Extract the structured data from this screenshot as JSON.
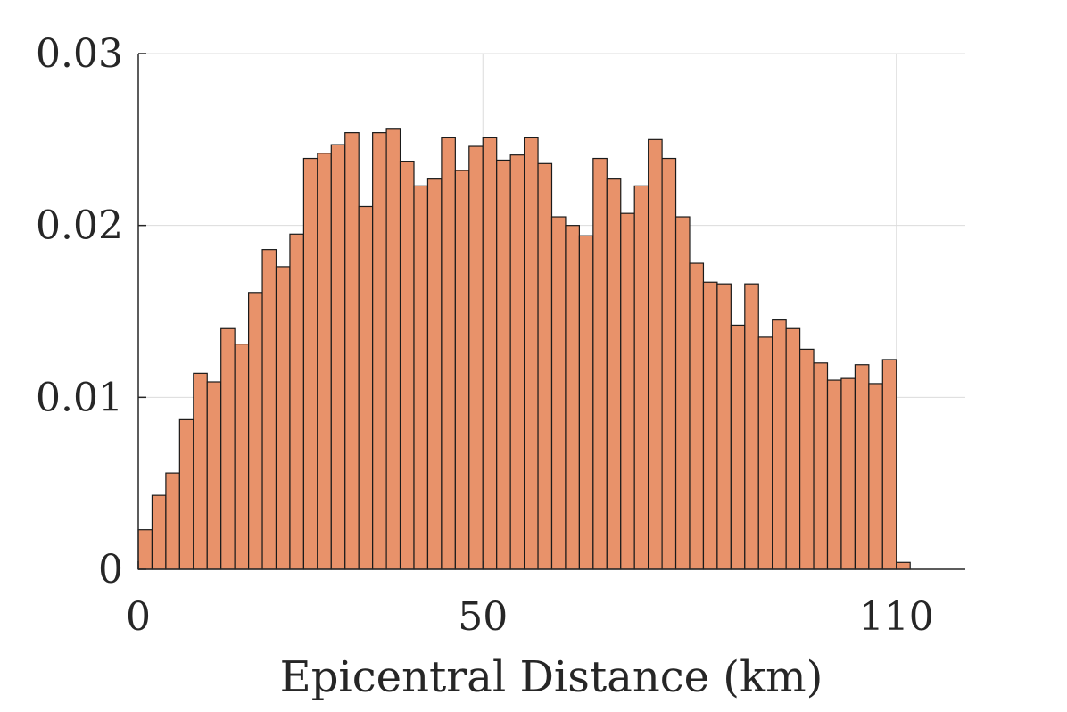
{
  "chart_data": {
    "type": "bar",
    "xlabel": "Epicentral Distance (km)",
    "ylabel": "",
    "title": "",
    "bin_width": 2,
    "xlim": [
      0,
      120
    ],
    "ylim": [
      0,
      0.03
    ],
    "xticks": [
      0,
      50,
      110
    ],
    "xtick_labels": [
      "0",
      "50",
      "110"
    ],
    "yticks": [
      0,
      0.01,
      0.02,
      0.03
    ],
    "ytick_labels": [
      "0",
      "0.01",
      "0.02",
      "0.03"
    ],
    "grid": true,
    "bar_color": "#E8926A",
    "bar_edge_color": "#1a1a1a",
    "bins_start": [
      0,
      2,
      4,
      6,
      8,
      10,
      12,
      14,
      16,
      18,
      20,
      22,
      24,
      26,
      28,
      30,
      32,
      34,
      36,
      38,
      40,
      42,
      44,
      46,
      48,
      50,
      52,
      54,
      56,
      58,
      60,
      62,
      64,
      66,
      68,
      70,
      72,
      74,
      76,
      78,
      80,
      82,
      84,
      86,
      88,
      90,
      92,
      94,
      96,
      98,
      100,
      102,
      104,
      106,
      108,
      110,
      112
    ],
    "values": [
      0.0023,
      0.0043,
      0.0056,
      0.0087,
      0.0114,
      0.0109,
      0.014,
      0.0131,
      0.0161,
      0.0186,
      0.0176,
      0.0195,
      0.0239,
      0.0242,
      0.0247,
      0.0254,
      0.0211,
      0.0254,
      0.0256,
      0.0237,
      0.0223,
      0.0227,
      0.0251,
      0.0232,
      0.0246,
      0.0251,
      0.0238,
      0.0241,
      0.0251,
      0.0236,
      0.0205,
      0.02,
      0.0194,
      0.0239,
      0.0227,
      0.0207,
      0.0223,
      0.025,
      0.0239,
      0.0205,
      0.0178,
      0.0167,
      0.0166,
      0.0142,
      0.0166,
      0.0135,
      0.0145,
      0.014,
      0.0128,
      0.012,
      0.011,
      0.0111,
      0.0119,
      0.0108,
      0.0122,
      0.0004,
      0.0
    ]
  }
}
